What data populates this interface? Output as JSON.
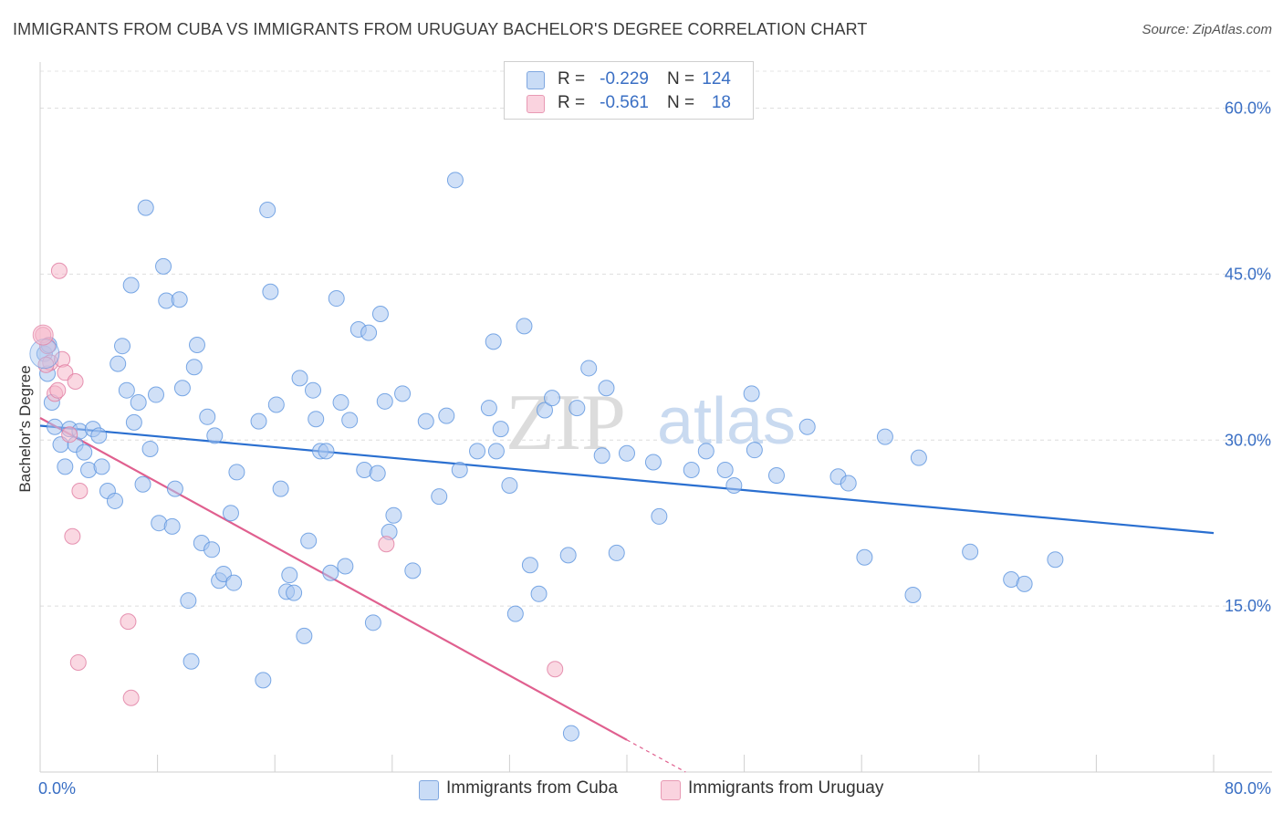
{
  "header": {
    "title": "IMMIGRANTS FROM CUBA VS IMMIGRANTS FROM URUGUAY BACHELOR'S DEGREE CORRELATION CHART",
    "source": "Source: ZipAtlas.com"
  },
  "watermark": {
    "zip": "ZIP",
    "atlas": "atlas"
  },
  "stats": {
    "rows": [
      {
        "r_label": "R =",
        "r_value": "-0.229",
        "n_label": "N =",
        "n_value": "124",
        "color": "#aac7f0"
      },
      {
        "r_label": "R =",
        "r_value": "-0.561",
        "n_label": "N =",
        "n_value": "18",
        "color": "#f5b8cb"
      }
    ]
  },
  "legend": {
    "items": [
      {
        "label": "Immigrants from Cuba",
        "color": "#aac7f0"
      },
      {
        "label": "Immigrants from Uruguay",
        "color": "#f5b8cb"
      }
    ]
  },
  "chart_data": {
    "type": "scatter",
    "title": "IMMIGRANTS FROM CUBA VS IMMIGRANTS FROM URUGUAY BACHELOR'S DEGREE CORRELATION CHART",
    "xlabel": "",
    "ylabel": "Bachelor's Degree",
    "xlim": [
      0,
      80
    ],
    "ylim": [
      0,
      64
    ],
    "x_tick_labels": [
      "0.0%",
      "80.0%"
    ],
    "y_ticks": [
      15,
      30,
      45,
      60
    ],
    "y_tick_labels": [
      "15.0%",
      "30.0%",
      "45.0%",
      "60.0%"
    ],
    "grid": "horizontal dashed",
    "legend_position": "bottom",
    "series": [
      {
        "name": "Immigrants from Cuba",
        "color": "#5b93de",
        "fill": "#aac7f0",
        "trendline": {
          "x": [
            0,
            80
          ],
          "y": [
            31.3,
            21.6
          ],
          "color": "#2a6fd0"
        },
        "points": [
          [
            0.5,
            36.0
          ],
          [
            0.8,
            33.4
          ],
          [
            1.0,
            31.2
          ],
          [
            1.4,
            29.6
          ],
          [
            1.7,
            27.6
          ],
          [
            2.0,
            31.0
          ],
          [
            2.4,
            29.6
          ],
          [
            2.7,
            30.8
          ],
          [
            3.0,
            28.9
          ],
          [
            3.3,
            27.3
          ],
          [
            3.6,
            31.0
          ],
          [
            4.0,
            30.4
          ],
          [
            4.2,
            27.6
          ],
          [
            4.6,
            25.4
          ],
          [
            5.1,
            24.5
          ],
          [
            5.3,
            36.9
          ],
          [
            5.6,
            38.5
          ],
          [
            5.9,
            34.5
          ],
          [
            6.2,
            44.0
          ],
          [
            6.4,
            31.6
          ],
          [
            6.7,
            33.4
          ],
          [
            7.0,
            26.0
          ],
          [
            7.2,
            51.0
          ],
          [
            7.5,
            29.2
          ],
          [
            7.9,
            34.1
          ],
          [
            8.1,
            22.5
          ],
          [
            8.4,
            45.7
          ],
          [
            8.6,
            42.6
          ],
          [
            9.0,
            22.2
          ],
          [
            9.2,
            25.6
          ],
          [
            9.5,
            42.7
          ],
          [
            9.7,
            34.7
          ],
          [
            10.1,
            15.5
          ],
          [
            10.3,
            10.0
          ],
          [
            10.5,
            36.6
          ],
          [
            10.7,
            38.6
          ],
          [
            11.0,
            20.7
          ],
          [
            11.4,
            32.1
          ],
          [
            11.7,
            20.1
          ],
          [
            11.9,
            30.4
          ],
          [
            12.2,
            17.3
          ],
          [
            12.5,
            17.9
          ],
          [
            13.0,
            23.4
          ],
          [
            13.2,
            17.1
          ],
          [
            13.4,
            27.1
          ],
          [
            14.9,
            31.7
          ],
          [
            15.2,
            8.3
          ],
          [
            15.5,
            50.8
          ],
          [
            15.7,
            43.4
          ],
          [
            16.1,
            33.2
          ],
          [
            16.4,
            25.6
          ],
          [
            16.8,
            16.3
          ],
          [
            17.0,
            17.8
          ],
          [
            17.3,
            16.2
          ],
          [
            17.7,
            35.6
          ],
          [
            18.0,
            12.3
          ],
          [
            18.3,
            20.9
          ],
          [
            18.6,
            34.5
          ],
          [
            18.8,
            31.9
          ],
          [
            19.1,
            29.0
          ],
          [
            19.5,
            29.0
          ],
          [
            19.8,
            18.0
          ],
          [
            20.2,
            42.8
          ],
          [
            20.5,
            33.4
          ],
          [
            20.8,
            18.6
          ],
          [
            21.1,
            31.8
          ],
          [
            21.7,
            40.0
          ],
          [
            22.1,
            27.3
          ],
          [
            22.4,
            39.7
          ],
          [
            22.7,
            13.5
          ],
          [
            23.0,
            27.0
          ],
          [
            23.2,
            41.4
          ],
          [
            23.5,
            33.5
          ],
          [
            23.8,
            21.7
          ],
          [
            24.1,
            23.2
          ],
          [
            24.7,
            34.2
          ],
          [
            25.4,
            18.2
          ],
          [
            26.3,
            31.7
          ],
          [
            27.2,
            24.9
          ],
          [
            27.7,
            32.2
          ],
          [
            28.3,
            53.5
          ],
          [
            28.6,
            27.3
          ],
          [
            29.8,
            29.0
          ],
          [
            30.6,
            32.9
          ],
          [
            30.9,
            38.9
          ],
          [
            31.1,
            29.0
          ],
          [
            31.4,
            31.0
          ],
          [
            32.0,
            25.9
          ],
          [
            32.4,
            14.3
          ],
          [
            33.0,
            40.3
          ],
          [
            33.4,
            18.7
          ],
          [
            34.0,
            16.1
          ],
          [
            34.4,
            32.7
          ],
          [
            34.9,
            33.8
          ],
          [
            36.0,
            19.6
          ],
          [
            36.6,
            32.9
          ],
          [
            37.4,
            36.5
          ],
          [
            38.3,
            28.6
          ],
          [
            38.6,
            34.7
          ],
          [
            39.3,
            19.8
          ],
          [
            40.0,
            28.8
          ],
          [
            41.8,
            28.0
          ],
          [
            42.2,
            23.1
          ],
          [
            44.4,
            27.3
          ],
          [
            45.4,
            29.0
          ],
          [
            46.7,
            27.3
          ],
          [
            47.3,
            25.9
          ],
          [
            48.5,
            34.2
          ],
          [
            48.7,
            29.1
          ],
          [
            50.2,
            26.8
          ],
          [
            52.3,
            31.2
          ],
          [
            54.4,
            26.7
          ],
          [
            55.1,
            26.1
          ],
          [
            56.2,
            19.4
          ],
          [
            57.6,
            30.3
          ],
          [
            59.5,
            16.0
          ],
          [
            59.9,
            28.4
          ],
          [
            63.4,
            19.9
          ],
          [
            66.2,
            17.4
          ],
          [
            67.1,
            17.0
          ],
          [
            69.2,
            19.2
          ],
          [
            36.2,
            3.5
          ],
          [
            0.3,
            37.8
          ],
          [
            0.6,
            38.6
          ]
        ]
      },
      {
        "name": "Immigrants from Uruguay",
        "color": "#e07aa0",
        "fill": "#f5b8cb",
        "trendline": {
          "x": [
            0,
            40
          ],
          "y": [
            32.0,
            2.9
          ],
          "dashed_to": [
            44,
            0
          ],
          "color": "#e0608f"
        },
        "points": [
          [
            0.2,
            39.5
          ],
          [
            0.5,
            38.5
          ],
          [
            0.7,
            37.0
          ],
          [
            1.0,
            34.2
          ],
          [
            1.2,
            34.5
          ],
          [
            1.3,
            45.3
          ],
          [
            1.5,
            37.3
          ],
          [
            1.7,
            36.1
          ],
          [
            2.0,
            30.5
          ],
          [
            2.2,
            21.3
          ],
          [
            2.4,
            35.3
          ],
          [
            2.7,
            25.4
          ],
          [
            2.6,
            9.9
          ],
          [
            6.0,
            13.6
          ],
          [
            6.2,
            6.7
          ],
          [
            23.6,
            20.6
          ],
          [
            35.1,
            9.3
          ],
          [
            0.4,
            36.8
          ]
        ]
      }
    ]
  }
}
